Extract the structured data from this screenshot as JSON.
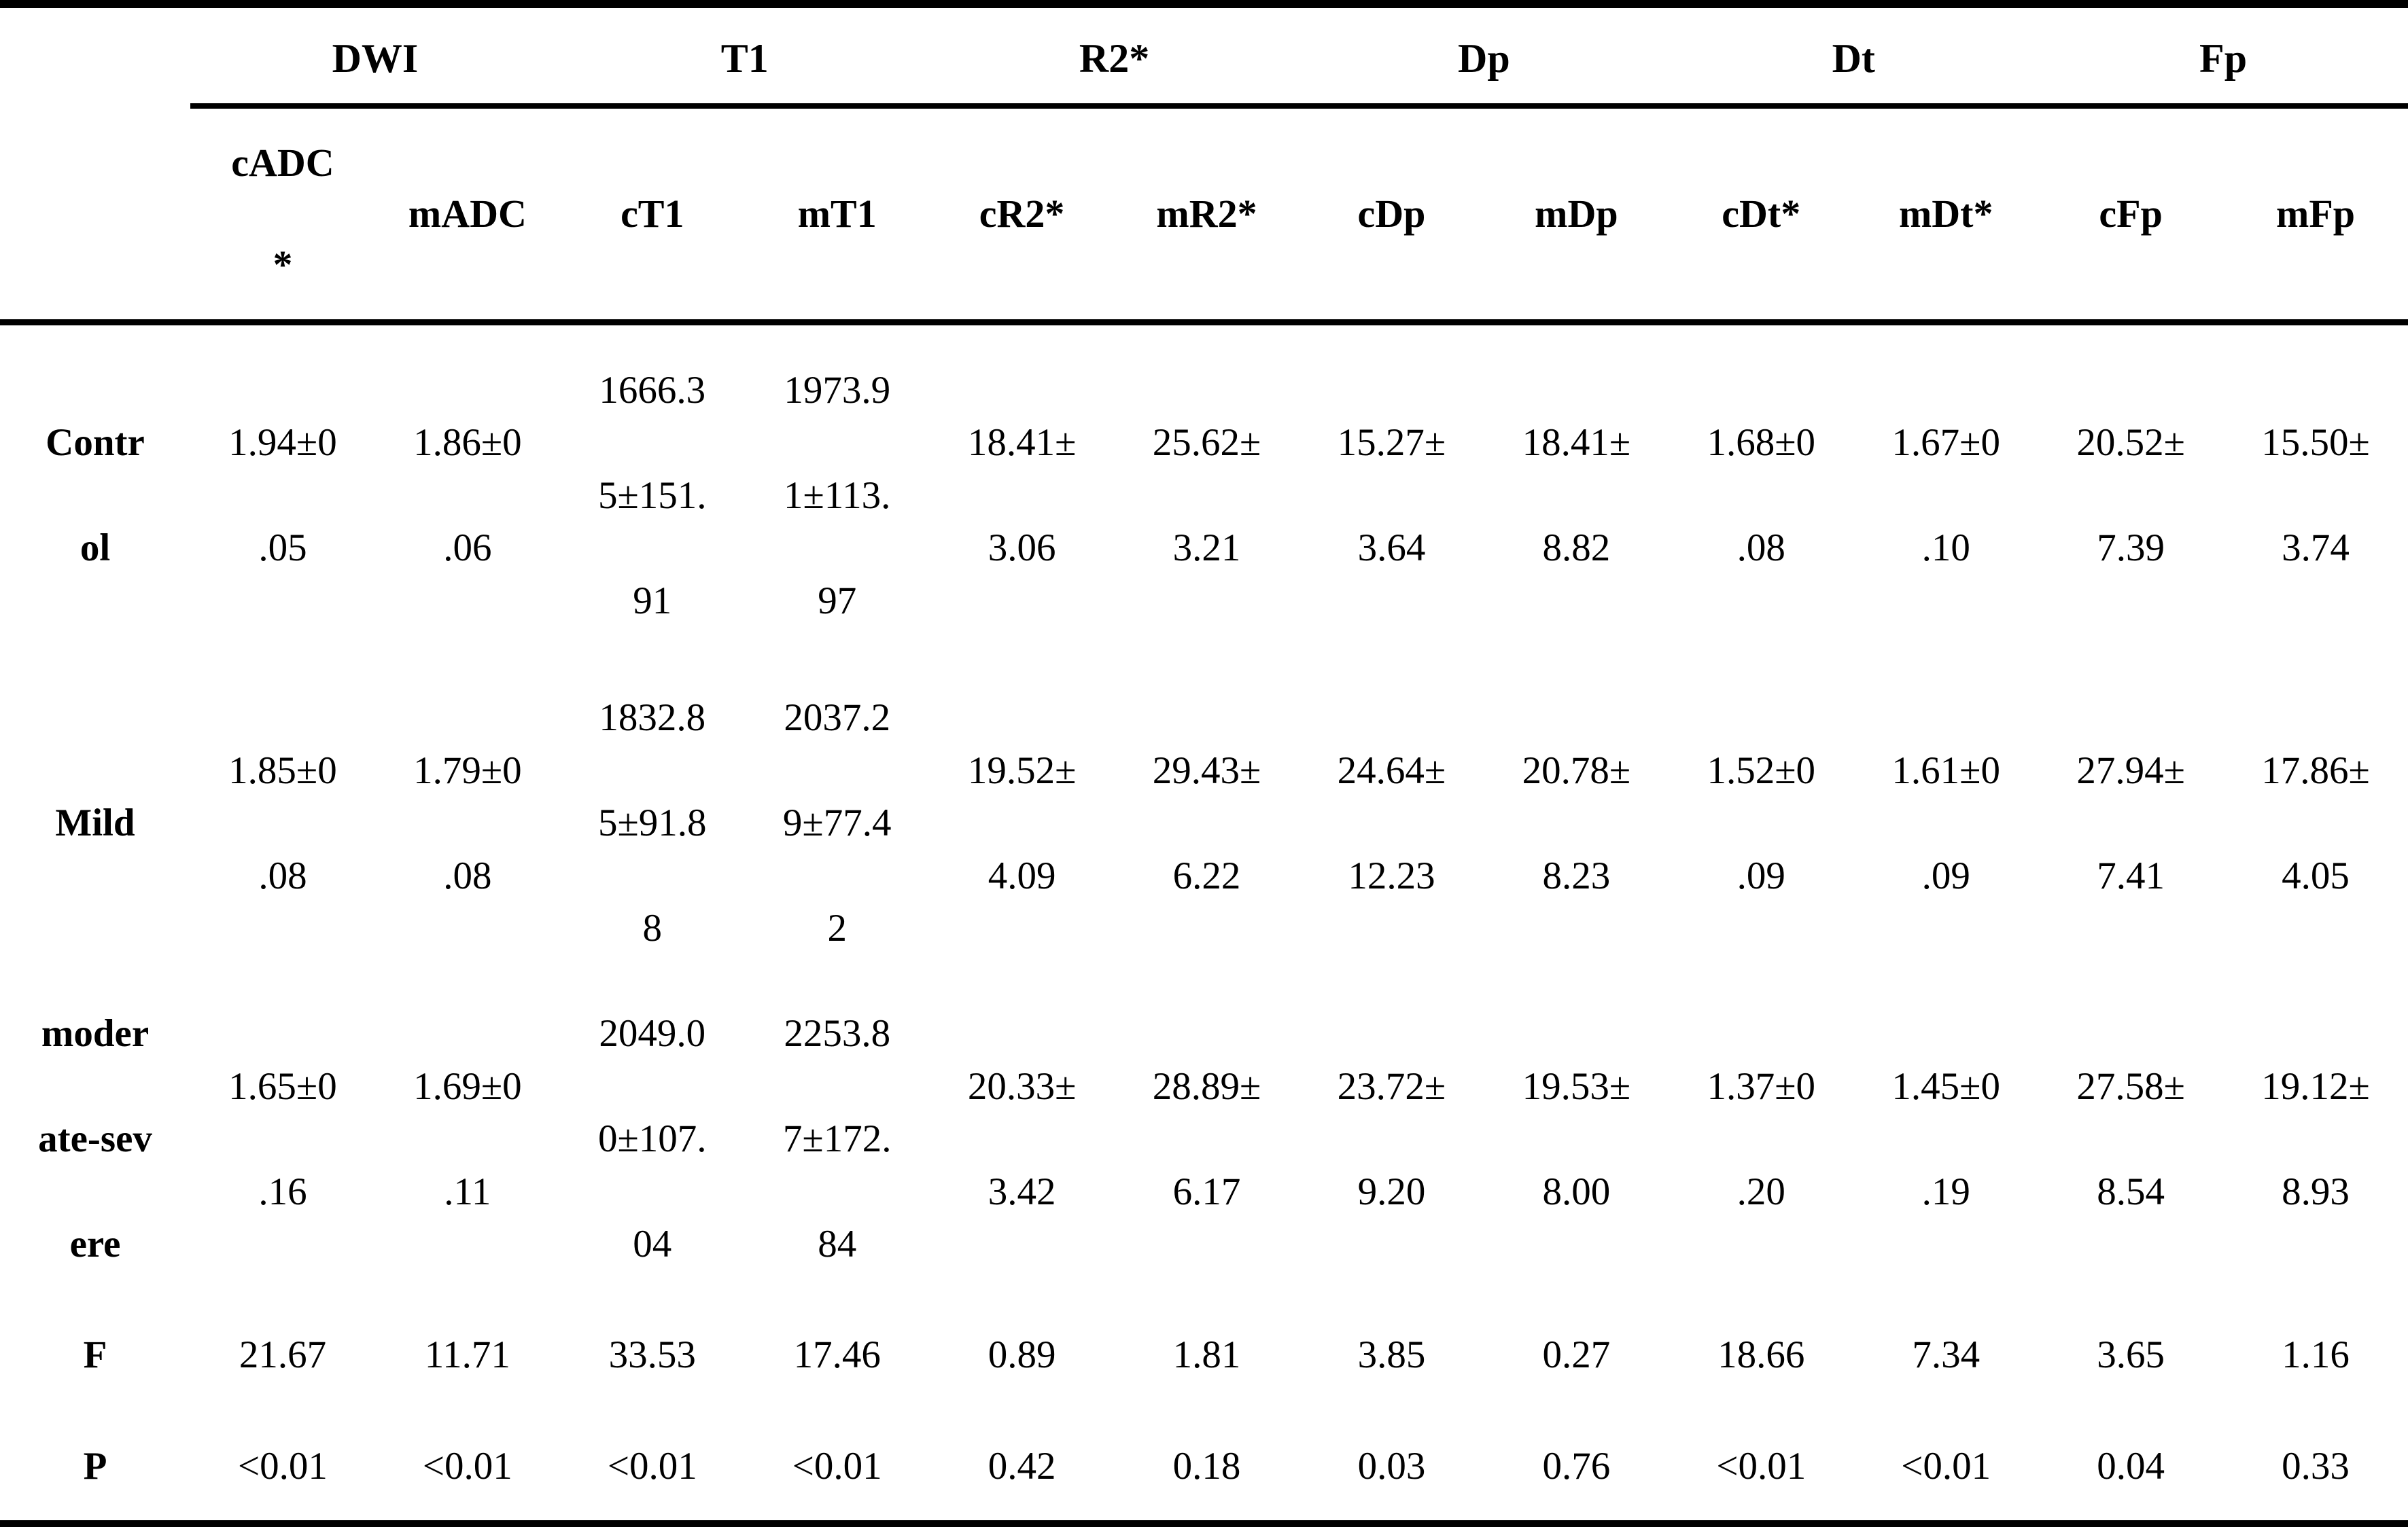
{
  "table": {
    "groups": [
      {
        "label": "DWI"
      },
      {
        "label": "T1"
      },
      {
        "label": "R2*"
      },
      {
        "label": "Dp"
      },
      {
        "label": "Dt"
      },
      {
        "label": "Fp"
      }
    ],
    "subheaders": [
      "cADC\n*",
      "mADC",
      "cT1",
      "mT1",
      "cR2*",
      "mR2*",
      "cDp",
      "mDp",
      "cDt*",
      "mDt*",
      "cFp",
      "mFp"
    ],
    "rows": [
      {
        "label": "Contr\nol",
        "values": [
          "1.94±0\n.05",
          "1.86±0\n.06",
          "1666.3\n5±151.\n91",
          "1973.9\n1±113.\n97",
          "18.41±\n3.06",
          "25.62±\n3.21",
          "15.27±\n3.64",
          "18.41±\n8.82",
          "1.68±0\n.08",
          "1.67±0\n.10",
          "20.52±\n7.39",
          "15.50±\n3.74"
        ]
      },
      {
        "label": "Mild",
        "values": [
          "1.85±0\n.08",
          "1.79±0\n.08",
          "1832.8\n5±91.8\n8",
          "2037.2\n9±77.4\n2",
          "19.52±\n4.09",
          "29.43±\n6.22",
          "24.64±\n12.23",
          "20.78±\n8.23",
          "1.52±0\n.09",
          "1.61±0\n.09",
          "27.94±\n7.41",
          "17.86±\n4.05"
        ]
      },
      {
        "label": "moder\nate-sev\nere",
        "values": [
          "1.65±0\n.16",
          "1.69±0\n.11",
          "2049.0\n0±107.\n04",
          "2253.8\n7±172.\n84",
          "20.33±\n3.42",
          "28.89±\n6.17",
          "23.72±\n9.20",
          "19.53±\n8.00",
          "1.37±0\n.20",
          "1.45±0\n.19",
          "27.58±\n8.54",
          "19.12±\n8.93"
        ]
      },
      {
        "label": "F",
        "values": [
          "21.67",
          "11.71",
          "33.53",
          "17.46",
          "0.89",
          "1.81",
          "3.85",
          "0.27",
          "18.66",
          "7.34",
          "3.65",
          "1.16"
        ]
      },
      {
        "label": "P",
        "values": [
          "<0.01",
          "<0.01",
          "<0.01",
          "<0.01",
          "0.42",
          "0.18",
          "0.03",
          "0.76",
          "<0.01",
          "<0.01",
          "0.04",
          "0.33"
        ]
      }
    ]
  }
}
